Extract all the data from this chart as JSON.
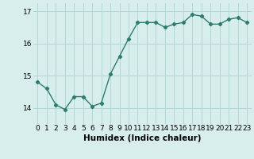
{
  "x": [
    0,
    1,
    2,
    3,
    4,
    5,
    6,
    7,
    8,
    9,
    10,
    11,
    12,
    13,
    14,
    15,
    16,
    17,
    18,
    19,
    20,
    21,
    22,
    23
  ],
  "y": [
    14.8,
    14.6,
    14.1,
    13.95,
    14.35,
    14.35,
    14.05,
    14.15,
    15.05,
    15.6,
    16.15,
    16.65,
    16.65,
    16.65,
    16.5,
    16.6,
    16.65,
    16.9,
    16.85,
    16.6,
    16.6,
    16.75,
    16.8,
    16.65
  ],
  "line_color": "#2d7c6e",
  "marker": "D",
  "marker_size": 2.2,
  "bg_color": "#d8eeec",
  "grid_color": "#b0d8d4",
  "xlabel": "Humidex (Indice chaleur)",
  "ylim": [
    13.5,
    17.25
  ],
  "yticks": [
    14,
    15,
    16,
    17
  ],
  "xticks": [
    0,
    1,
    2,
    3,
    4,
    5,
    6,
    7,
    8,
    9,
    10,
    11,
    12,
    13,
    14,
    15,
    16,
    17,
    18,
    19,
    20,
    21,
    22,
    23
  ],
  "xlabel_fontsize": 7.5,
  "tick_fontsize": 6.5,
  "line_width": 1.0
}
